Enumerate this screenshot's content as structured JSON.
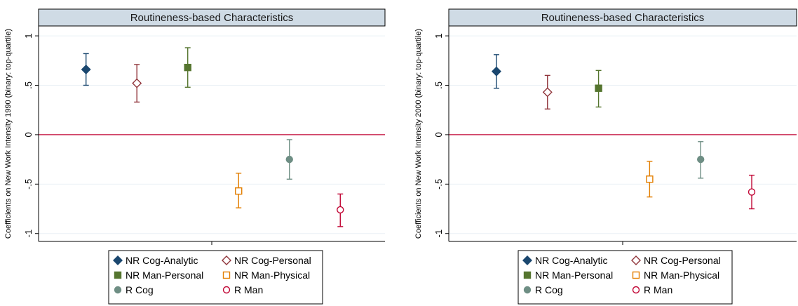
{
  "chart_data": [
    {
      "type": "scatter",
      "title": "Routineness-based Characteristics",
      "ylabel": "Coefficients on New Work Intensity 1990 (binary: top-quartile)",
      "xlabel": "",
      "ylim": [
        -1.08,
        1.1
      ],
      "yticks": [
        1,
        0.5,
        0,
        -0.5,
        -1
      ],
      "ytick_labels": [
        "1",
        ".5",
        "0",
        "-.5",
        "-1"
      ],
      "reference_line": 0,
      "series": [
        {
          "name": "NR Cog-Analytic",
          "position": 1,
          "estimate": 0.66,
          "ci": [
            0.5,
            0.82
          ],
          "color": "#1a476f",
          "marker": "diamond-filled"
        },
        {
          "name": "NR Cog-Personal",
          "position": 2,
          "estimate": 0.52,
          "ci": [
            0.33,
            0.71
          ],
          "color": "#90353b",
          "marker": "diamond-hollow"
        },
        {
          "name": "NR Man-Personal",
          "position": 3,
          "estimate": 0.68,
          "ci": [
            0.48,
            0.88
          ],
          "color": "#55752f",
          "marker": "square-filled"
        },
        {
          "name": "NR Man-Physical",
          "position": 4,
          "estimate": -0.57,
          "ci": [
            -0.74,
            -0.39
          ],
          "color": "#e37e00",
          "marker": "square-hollow"
        },
        {
          "name": "R Cog",
          "position": 5,
          "estimate": -0.25,
          "ci": [
            -0.45,
            -0.05
          ],
          "color": "#6e8e84",
          "marker": "circle-filled"
        },
        {
          "name": "R Man",
          "position": 6,
          "estimate": -0.76,
          "ci": [
            -0.93,
            -0.6
          ],
          "color": "#c10534",
          "marker": "circle-hollow"
        }
      ]
    },
    {
      "type": "scatter",
      "title": "Routineness-based Characteristics",
      "ylabel": "Coefficients on New Work Intensity 2000 (binary: top-quartile)",
      "xlabel": "",
      "ylim": [
        -1.08,
        1.1
      ],
      "yticks": [
        1,
        0.5,
        0,
        -0.5,
        -1
      ],
      "ytick_labels": [
        "1",
        ".5",
        "0",
        "-.5",
        "-1"
      ],
      "reference_line": 0,
      "series": [
        {
          "name": "NR Cog-Analytic",
          "position": 1,
          "estimate": 0.64,
          "ci": [
            0.47,
            0.81
          ],
          "color": "#1a476f",
          "marker": "diamond-filled"
        },
        {
          "name": "NR Cog-Personal",
          "position": 2,
          "estimate": 0.43,
          "ci": [
            0.26,
            0.6
          ],
          "color": "#90353b",
          "marker": "diamond-hollow"
        },
        {
          "name": "NR Man-Personal",
          "position": 3,
          "estimate": 0.47,
          "ci": [
            0.28,
            0.65
          ],
          "color": "#55752f",
          "marker": "square-filled"
        },
        {
          "name": "NR Man-Physical",
          "position": 4,
          "estimate": -0.45,
          "ci": [
            -0.63,
            -0.27
          ],
          "color": "#e37e00",
          "marker": "square-hollow"
        },
        {
          "name": "R Cog",
          "position": 5,
          "estimate": -0.25,
          "ci": [
            -0.44,
            -0.07
          ],
          "color": "#6e8e84",
          "marker": "circle-filled"
        },
        {
          "name": "R Man",
          "position": 6,
          "estimate": -0.58,
          "ci": [
            -0.75,
            -0.41
          ],
          "color": "#c10534",
          "marker": "circle-hollow"
        }
      ]
    }
  ],
  "colors": {
    "title_band": "#cfdbe5",
    "reference_line": "#c10534",
    "grid": "#eaf0f5",
    "axis": "#000000"
  }
}
